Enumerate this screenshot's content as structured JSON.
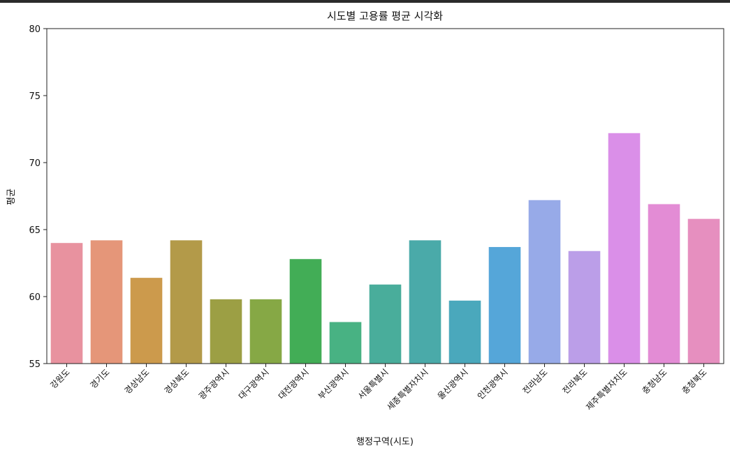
{
  "chart_data": {
    "type": "bar",
    "title": "시도별 고용률 평균 시각화",
    "xlabel": "행정구역(시도)",
    "ylabel": "평균",
    "ylim": [
      55,
      80
    ],
    "yticks": [
      55,
      60,
      65,
      70,
      75,
      80
    ],
    "grid": false,
    "legend": "none",
    "categories": [
      "강원도",
      "경기도",
      "경상남도",
      "경상북도",
      "광주광역시",
      "대구광역시",
      "대전광역시",
      "부산광역시",
      "서울특별시",
      "세종특별자치시",
      "울산광역시",
      "인천광역시",
      "전라남도",
      "전라북도",
      "제주특별자치도",
      "충청남도",
      "충청북도"
    ],
    "values": [
      64.0,
      64.2,
      61.4,
      64.2,
      59.8,
      59.8,
      62.8,
      58.1,
      60.9,
      64.2,
      59.7,
      63.7,
      67.2,
      63.4,
      72.2,
      66.9,
      65.8
    ],
    "colors": [
      "#e8929f",
      "#e59679",
      "#cc9a4c",
      "#b39a49",
      "#9c9f44",
      "#86a845",
      "#42ad56",
      "#48b283",
      "#49ad9b",
      "#4aaaa9",
      "#4aa8bc",
      "#55a6d9",
      "#97aae8",
      "#bb9ee8",
      "#da8fe8",
      "#e38cd5",
      "#e68fbf"
    ]
  }
}
